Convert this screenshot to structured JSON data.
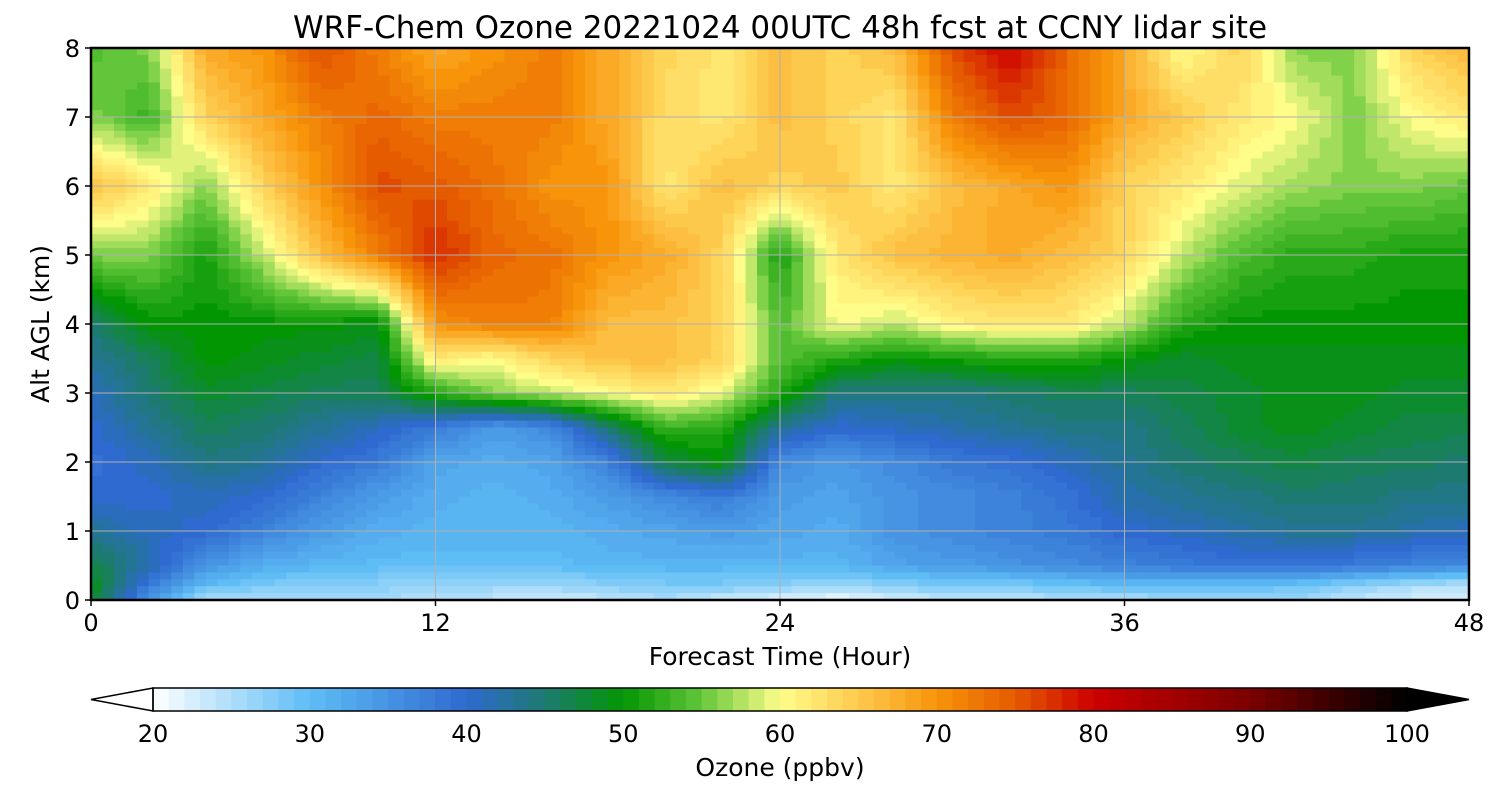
{
  "chart_data": {
    "type": "heatmap",
    "title": "WRF-Chem Ozone  20221024 00UTC 48h fcst at CCNY lidar site",
    "xlabel": "Forecast Time (Hour)",
    "ylabel": "Alt AGL (km)",
    "xlim": [
      0,
      48
    ],
    "ylim": [
      0,
      8
    ],
    "xticks": [
      "0",
      "12",
      "24",
      "36",
      "48"
    ],
    "yticks": [
      "0",
      "1",
      "2",
      "3",
      "4",
      "5",
      "6",
      "7",
      "8"
    ],
    "grid": true,
    "colorbar": {
      "label": "Ozone  (ppbv)",
      "min": 20,
      "max": 100,
      "extend": "both",
      "ticks": [
        "20",
        "30",
        "40",
        "50",
        "60",
        "70",
        "80",
        "90",
        "100"
      ],
      "colors": [
        [
          20,
          "#ffffff"
        ],
        [
          30,
          "#5ebdf5"
        ],
        [
          40,
          "#2f6ad0"
        ],
        [
          45,
          "#1d7a70"
        ],
        [
          50,
          "#039603"
        ],
        [
          55,
          "#63c63a"
        ],
        [
          60,
          "#fffd8a"
        ],
        [
          66,
          "#fdbf41"
        ],
        [
          70,
          "#f7940a"
        ],
        [
          75,
          "#e55b00"
        ],
        [
          80,
          "#cc0000"
        ],
        [
          90,
          "#7a0000"
        ],
        [
          100,
          "#000000"
        ]
      ]
    },
    "x_hours": [
      0,
      2,
      4,
      6,
      8,
      10,
      12,
      14,
      16,
      18,
      20,
      22,
      24,
      26,
      28,
      30,
      32,
      34,
      36,
      38,
      40,
      42,
      44,
      46,
      48
    ],
    "alt_km": [
      0,
      0.2,
      0.5,
      1,
      1.5,
      2,
      2.5,
      3,
      3.5,
      4,
      5,
      6,
      7,
      8
    ],
    "ozone_ppbv": [
      [
        48,
        35,
        24,
        25,
        26,
        26,
        24,
        24,
        23,
        24,
        25,
        23,
        22,
        21,
        23,
        24,
        24,
        25,
        25,
        26,
        26,
        26,
        24,
        23,
        23
      ],
      [
        49,
        38,
        30,
        28,
        27,
        27,
        26,
        26,
        26,
        27,
        28,
        28,
        27,
        26,
        27,
        28,
        28,
        29,
        30,
        30,
        30,
        29,
        27,
        25,
        24
      ],
      [
        47,
        42,
        35,
        32,
        31,
        30,
        30,
        30,
        30,
        31,
        31,
        31,
        31,
        31,
        33,
        34,
        35,
        36,
        37,
        38,
        39,
        39,
        38,
        37,
        36
      ],
      [
        43,
        41,
        40,
        37,
        34,
        32,
        31,
        31,
        31,
        32,
        33,
        34,
        33,
        32,
        35,
        36,
        37,
        38,
        40,
        41,
        42,
        43,
        43,
        42,
        41
      ],
      [
        40,
        40,
        41,
        40,
        37,
        34,
        32,
        31,
        32,
        34,
        36,
        38,
        34,
        33,
        35,
        36,
        37,
        39,
        42,
        43,
        44,
        45,
        45,
        44,
        44
      ],
      [
        39,
        41,
        44,
        43,
        40,
        38,
        33,
        32,
        33,
        37,
        47,
        50,
        36,
        34,
        36,
        38,
        39,
        41,
        43,
        45,
        46,
        47,
        46,
        46,
        45
      ],
      [
        40,
        43,
        46,
        45,
        43,
        41,
        38,
        34,
        36,
        45,
        53,
        52,
        43,
        40,
        41,
        42,
        43,
        44,
        44,
        46,
        48,
        49,
        48,
        47,
        47
      ],
      [
        41,
        45,
        48,
        47,
        46,
        46,
        52,
        56,
        58,
        60,
        62,
        59,
        52,
        44,
        44,
        44,
        45,
        46,
        46,
        47,
        48,
        49,
        49,
        48,
        48
      ],
      [
        43,
        46,
        50,
        49,
        48,
        47,
        62,
        60,
        64,
        66,
        66,
        64,
        54,
        52,
        50,
        51,
        52,
        52,
        50,
        48,
        49,
        49,
        49,
        49,
        49
      ],
      [
        45,
        50,
        50,
        50,
        50,
        49,
        70,
        72,
        72,
        66,
        66,
        64,
        54,
        60,
        58,
        61,
        62,
        62,
        58,
        52,
        50,
        50,
        50,
        50,
        50
      ],
      [
        56,
        56,
        51,
        58,
        66,
        72,
        78,
        74,
        73,
        70,
        68,
        64,
        51,
        62,
        66,
        67,
        68,
        66,
        64,
        58,
        54,
        52,
        52,
        51,
        51
      ],
      [
        66,
        62,
        56,
        64,
        70,
        76,
        75,
        73,
        70,
        70,
        62,
        66,
        64,
        65,
        62,
        66,
        68,
        70,
        64,
        62,
        59,
        57,
        56,
        56,
        55
      ],
      [
        56,
        53,
        64,
        68,
        72,
        74,
        72,
        72,
        72,
        68,
        63,
        62,
        66,
        64,
        62,
        72,
        76,
        74,
        68,
        65,
        62,
        60,
        56,
        60,
        62
      ],
      [
        54,
        56,
        68,
        70,
        76,
        72,
        68,
        70,
        72,
        68,
        64,
        62,
        66,
        64,
        66,
        76,
        80,
        74,
        68,
        60,
        64,
        56,
        56,
        64,
        67
      ]
    ]
  }
}
